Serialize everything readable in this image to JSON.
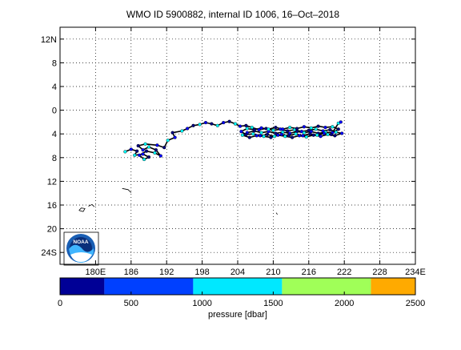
{
  "title": "WMO ID 5900882, internal ID 1006, 16–Oct–2018",
  "map": {
    "lon_range": [
      174,
      234
    ],
    "lat_range": [
      26,
      -14
    ],
    "lon_ticks": [
      {
        "v": 180,
        "label": "180E"
      },
      {
        "v": 186,
        "label": "186"
      },
      {
        "v": 192,
        "label": "192"
      },
      {
        "v": 198,
        "label": "198"
      },
      {
        "v": 204,
        "label": "204"
      },
      {
        "v": 210,
        "label": "210"
      },
      {
        "v": 216,
        "label": "216"
      },
      {
        "v": 222,
        "label": "222"
      },
      {
        "v": 228,
        "label": "228"
      },
      {
        "v": 234,
        "label": "234E"
      }
    ],
    "lat_ticks": [
      {
        "v": -12,
        "label": "12N"
      },
      {
        "v": -8,
        "label": "8"
      },
      {
        "v": -4,
        "label": "4"
      },
      {
        "v": 0,
        "label": "0"
      },
      {
        "v": 4,
        "label": "4"
      },
      {
        "v": 8,
        "label": "8"
      },
      {
        "v": 12,
        "label": "12"
      },
      {
        "v": 16,
        "label": "16"
      },
      {
        "v": 20,
        "label": "20"
      },
      {
        "v": 24,
        "label": "24S"
      }
    ],
    "grid": "dotted",
    "track_color": "#000000",
    "profile_colors": [
      "#00ffff",
      "#0000ff",
      "#000080"
    ],
    "logo_text": "NOAA",
    "islands": [
      [
        [
          184.5,
          13.2
        ],
        [
          185.5,
          13.4
        ],
        [
          186.0,
          13.9
        ]
      ],
      [
        [
          177.2,
          16.9
        ],
        [
          177.6,
          16.5
        ],
        [
          178.2,
          16.6
        ],
        [
          177.9,
          17.1
        ],
        [
          177.2,
          16.9
        ]
      ],
      [
        [
          178.8,
          16.2
        ],
        [
          179.4,
          15.9
        ],
        [
          179.8,
          16.3
        ]
      ],
      [
        [
          210.5,
          17.3
        ],
        [
          210.7,
          17.6
        ]
      ]
    ],
    "track": [
      [
        185.0,
        7.0
      ],
      [
        186.0,
        6.6
      ],
      [
        187.0,
        6.9
      ],
      [
        186.6,
        7.6
      ],
      [
        188.0,
        7.4
      ],
      [
        189.0,
        7.9
      ],
      [
        188.2,
        8.3
      ],
      [
        187.4,
        7.6
      ],
      [
        188.6,
        6.9
      ],
      [
        190.0,
        7.2
      ],
      [
        191.0,
        7.7
      ],
      [
        190.2,
        6.7
      ],
      [
        189.0,
        6.2
      ],
      [
        188.0,
        6.7
      ],
      [
        187.2,
        6.0
      ],
      [
        188.4,
        5.7
      ],
      [
        190.4,
        5.9
      ],
      [
        191.6,
        6.3
      ],
      [
        192.2,
        5.1
      ],
      [
        193.4,
        4.6
      ],
      [
        193.0,
        3.8
      ],
      [
        194.6,
        3.5
      ],
      [
        195.5,
        3.1
      ],
      [
        196.5,
        2.6
      ],
      [
        197.6,
        2.4
      ],
      [
        198.6,
        2.1
      ],
      [
        199.6,
        2.3
      ],
      [
        200.6,
        2.6
      ],
      [
        201.6,
        2.1
      ],
      [
        202.6,
        1.9
      ],
      [
        203.6,
        2.3
      ],
      [
        204.4,
        2.7
      ],
      [
        205.4,
        2.6
      ],
      [
        206.4,
        2.9
      ],
      [
        207.6,
        3.3
      ],
      [
        208.8,
        3.1
      ],
      [
        210.0,
        3.4
      ],
      [
        211.2,
        3.2
      ],
      [
        212.4,
        3.5
      ],
      [
        213.6,
        3.3
      ],
      [
        214.8,
        3.6
      ],
      [
        216.0,
        3.4
      ],
      [
        217.2,
        3.2
      ],
      [
        218.4,
        3.5
      ],
      [
        219.6,
        3.3
      ],
      [
        220.6,
        3.7
      ],
      [
        221.6,
        3.9
      ],
      [
        220.4,
        4.3
      ],
      [
        219.2,
        4.1
      ],
      [
        218.0,
        4.4
      ],
      [
        216.8,
        4.2
      ],
      [
        215.6,
        4.5
      ],
      [
        214.4,
        4.3
      ],
      [
        213.2,
        4.6
      ],
      [
        212.0,
        4.4
      ],
      [
        210.8,
        4.2
      ],
      [
        209.6,
        4.6
      ],
      [
        208.4,
        4.4
      ],
      [
        207.2,
        4.3
      ],
      [
        206.0,
        4.6
      ],
      [
        204.8,
        4.2
      ],
      [
        205.6,
        3.8
      ],
      [
        206.8,
        3.5
      ],
      [
        208.0,
        3.8
      ],
      [
        209.2,
        3.6
      ],
      [
        210.4,
        3.9
      ],
      [
        211.6,
        3.7
      ],
      [
        212.8,
        3.9
      ],
      [
        214.0,
        3.6
      ],
      [
        215.2,
        3.8
      ],
      [
        216.4,
        3.6
      ],
      [
        217.6,
        3.9
      ],
      [
        218.8,
        3.7
      ],
      [
        220.0,
        3.8
      ],
      [
        221.0,
        3.2
      ],
      [
        220.0,
        2.8
      ],
      [
        218.8,
        2.9
      ],
      [
        217.6,
        2.7
      ],
      [
        216.4,
        3.0
      ],
      [
        215.2,
        2.8
      ],
      [
        214.0,
        3.1
      ],
      [
        212.8,
        2.9
      ],
      [
        211.6,
        3.2
      ],
      [
        210.4,
        2.9
      ],
      [
        209.2,
        3.2
      ],
      [
        208.0,
        3.0
      ],
      [
        206.8,
        3.3
      ],
      [
        205.6,
        3.1
      ],
      [
        204.6,
        3.6
      ],
      [
        205.4,
        4.1
      ],
      [
        206.6,
        4.0
      ],
      [
        207.8,
        4.3
      ],
      [
        209.0,
        4.1
      ],
      [
        210.2,
        4.4
      ],
      [
        211.4,
        4.1
      ],
      [
        212.6,
        4.3
      ],
      [
        213.8,
        4.0
      ],
      [
        215.0,
        4.3
      ],
      [
        216.2,
        4.0
      ],
      [
        217.4,
        4.2
      ],
      [
        218.6,
        3.9
      ],
      [
        219.8,
        4.1
      ],
      [
        221.0,
        2.2
      ],
      [
        221.4,
        2.0
      ]
    ]
  },
  "colorbar": {
    "min": 0,
    "max": 2500,
    "segments": [
      {
        "from": 0,
        "to": 312,
        "color": "#000096"
      },
      {
        "from": 312,
        "to": 937,
        "color": "#0040ff"
      },
      {
        "from": 937,
        "to": 1562,
        "color": "#00e8ff"
      },
      {
        "from": 1562,
        "to": 2187,
        "color": "#a0ff58"
      },
      {
        "from": 2187,
        "to": 2500,
        "color": "#ffaa00"
      }
    ],
    "ticks": [
      {
        "v": 0,
        "label": "0"
      },
      {
        "v": 500,
        "label": "500"
      },
      {
        "v": 1000,
        "label": "1000"
      },
      {
        "v": 1500,
        "label": "1500"
      },
      {
        "v": 2000,
        "label": "2000"
      },
      {
        "v": 2500,
        "label": "2500"
      }
    ],
    "label": "pressure [dbar]"
  }
}
